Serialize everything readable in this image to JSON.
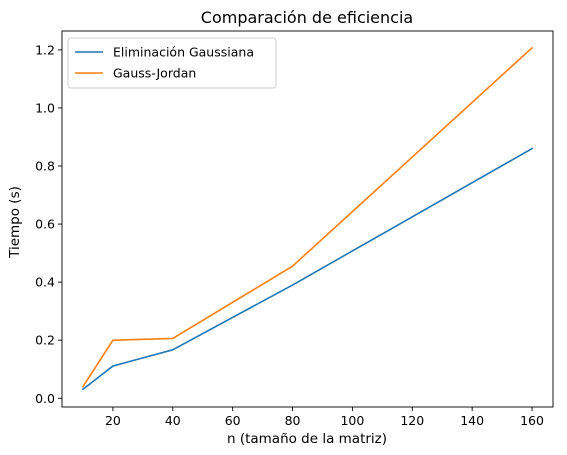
{
  "chart_data": {
    "type": "line",
    "title": "Comparación de eficiencia",
    "xlabel": "n (tamaño de la matriz)",
    "ylabel": "Tiempo (s)",
    "xlim": [
      3,
      167
    ],
    "ylim": [
      -0.03,
      1.265
    ],
    "xticks": [
      20,
      40,
      60,
      80,
      100,
      120,
      140,
      160
    ],
    "yticks": [
      0.0,
      0.2,
      0.4,
      0.6,
      0.8,
      1.0,
      1.2
    ],
    "ytick_labels": [
      "0.0",
      "0.2",
      "0.4",
      "0.6",
      "0.8",
      "1.0",
      "1.2"
    ],
    "grid": false,
    "legend_position": "top-left",
    "x": [
      10,
      20,
      40,
      80,
      160
    ],
    "series": [
      {
        "name": "Eliminación Gaussiana",
        "color": "#1f77b4",
        "values": [
          0.031,
          0.111,
          0.167,
          0.39,
          0.86
        ]
      },
      {
        "name": "Gauss-Jordan",
        "color": "#ff7f0e",
        "values": [
          0.04,
          0.2,
          0.206,
          0.455,
          1.207
        ]
      }
    ]
  }
}
